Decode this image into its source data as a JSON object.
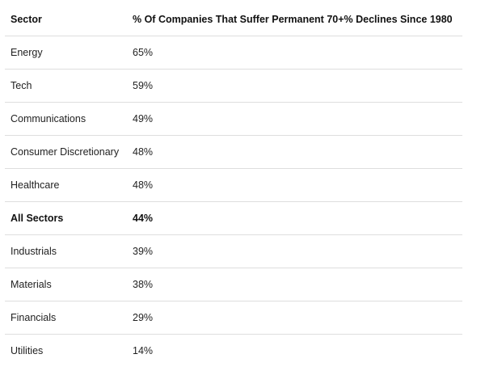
{
  "table": {
    "headers": {
      "sector": "Sector",
      "percent": "% Of Companies That Suffer Permanent 70+% Declines Since 1980"
    },
    "rows": [
      {
        "sector": "Energy",
        "percent": "65%",
        "bold": false
      },
      {
        "sector": "Tech",
        "percent": "59%",
        "bold": false
      },
      {
        "sector": "Communications",
        "percent": "49%",
        "bold": false
      },
      {
        "sector": "Consumer Discretionary",
        "percent": "48%",
        "bold": false
      },
      {
        "sector": "Healthcare",
        "percent": "48%",
        "bold": false
      },
      {
        "sector": "All Sectors",
        "percent": "44%",
        "bold": true
      },
      {
        "sector": "Industrials",
        "percent": "39%",
        "bold": false
      },
      {
        "sector": "Materials",
        "percent": "38%",
        "bold": false
      },
      {
        "sector": "Financials",
        "percent": "29%",
        "bold": false
      },
      {
        "sector": "Utilities",
        "percent": "14%",
        "bold": false
      }
    ]
  },
  "colors": {
    "text": "#222222",
    "divider": "#dedede",
    "background": "#ffffff"
  }
}
